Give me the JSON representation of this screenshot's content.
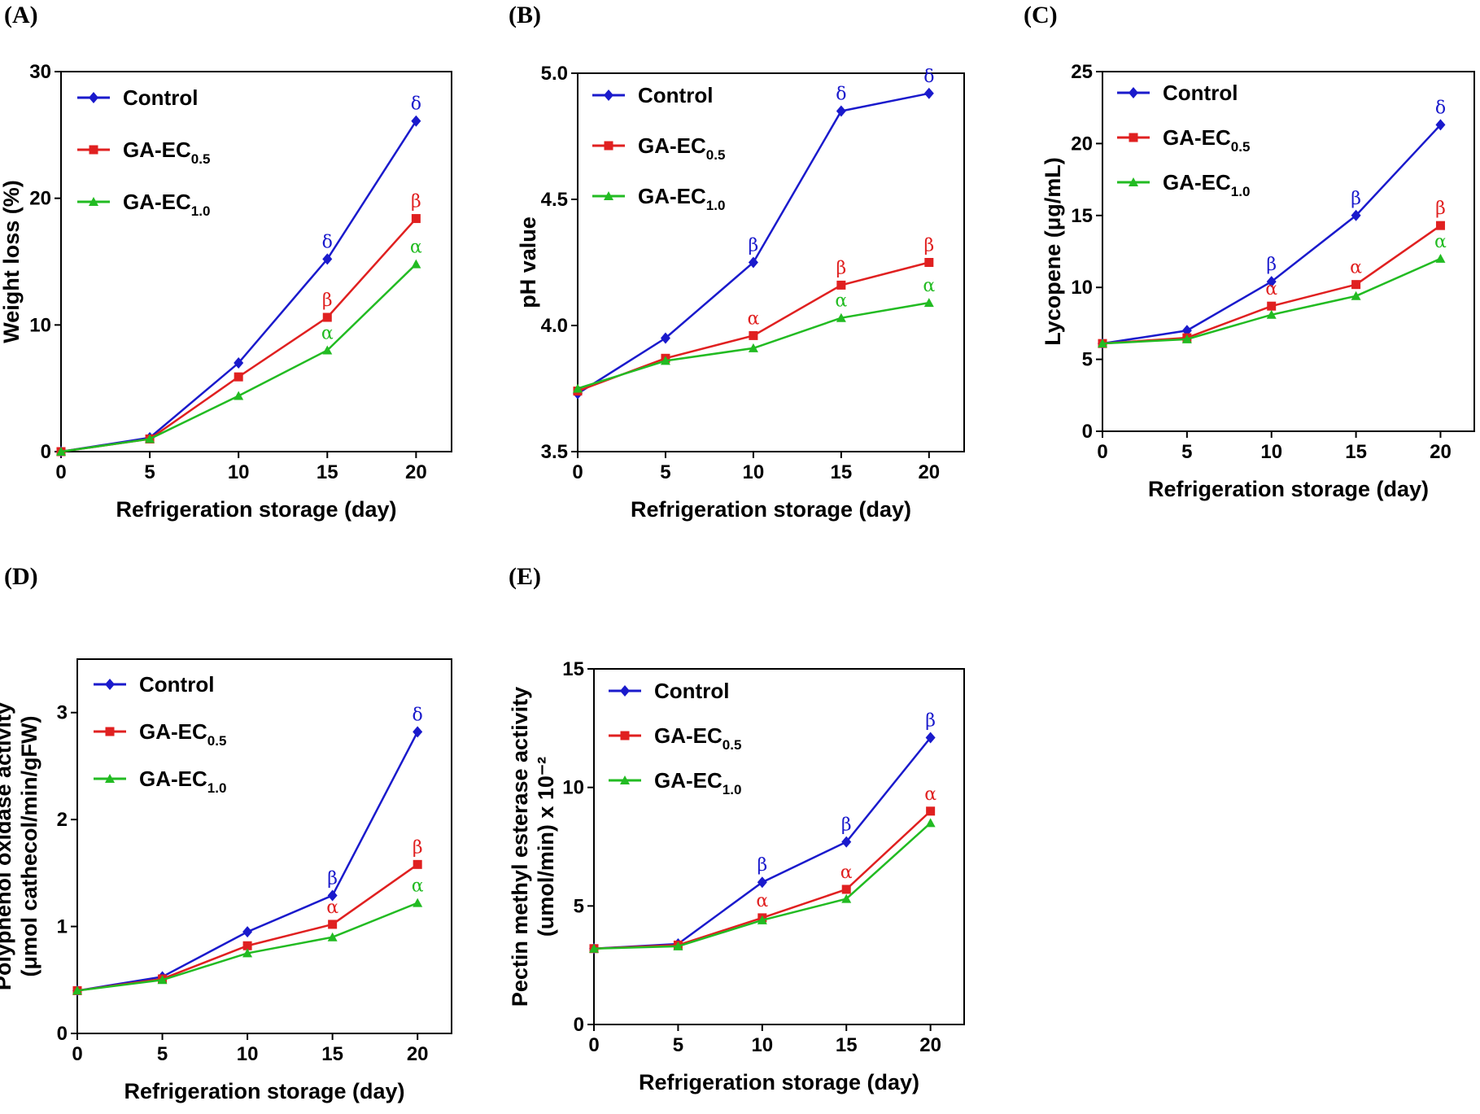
{
  "colors": {
    "Control": "#1a1acc",
    "GA-EC0.5": "#e02020",
    "GA-EC1.0": "#22bb22",
    "axis": "#000000"
  },
  "legend": [
    {
      "id": "Control",
      "main": "Control",
      "sub": ""
    },
    {
      "id": "GA-EC0.5",
      "main": "GA-EC",
      "sub": "0.5"
    },
    {
      "id": "GA-EC1.0",
      "main": "GA-EC",
      "sub": "1.0"
    }
  ],
  "chart_data": [
    {
      "id": "A",
      "panel_label": "(A)",
      "type": "line",
      "xlabel": "Refrigeration storage (day)",
      "ylabel": [
        "Weight loss (%)"
      ],
      "x": [
        0,
        5,
        10,
        15,
        20
      ],
      "xlim": [
        0,
        22
      ],
      "ylim": [
        0,
        30
      ],
      "yticks": [
        0,
        10,
        20,
        30
      ],
      "series": [
        {
          "name": "Control",
          "values": [
            0,
            1.1,
            7.0,
            15.2,
            26.1
          ],
          "labels": {
            "3": "δ",
            "4": "δ"
          }
        },
        {
          "name": "GA-EC0.5",
          "values": [
            0,
            1.0,
            5.9,
            10.6,
            18.4
          ],
          "labels": {
            "3": "β",
            "4": "β"
          }
        },
        {
          "name": "GA-EC1.0",
          "values": [
            0,
            1.0,
            4.4,
            8.0,
            14.8
          ],
          "labels": {
            "3": "α",
            "4": "α"
          }
        }
      ]
    },
    {
      "id": "B",
      "panel_label": "(B)",
      "type": "line",
      "xlabel": "Refrigeration storage (day)",
      "ylabel": [
        "pH value"
      ],
      "x": [
        0,
        5,
        10,
        15,
        20
      ],
      "xlim": [
        0,
        22
      ],
      "ylim": [
        3.5,
        5.0
      ],
      "yticks": [
        3.5,
        4.0,
        4.5,
        5.0
      ],
      "series": [
        {
          "name": "Control",
          "values": [
            3.73,
            3.95,
            4.25,
            4.85,
            4.92
          ],
          "labels": {
            "2": "β",
            "3": "δ",
            "4": "δ"
          }
        },
        {
          "name": "GA-EC0.5",
          "values": [
            3.74,
            3.87,
            3.96,
            4.16,
            4.25
          ],
          "labels": {
            "2": "α",
            "3": "β",
            "4": "β"
          }
        },
        {
          "name": "GA-EC1.0",
          "values": [
            3.75,
            3.86,
            3.91,
            4.03,
            4.09
          ],
          "labels": {
            "3": "α",
            "4": "α"
          }
        }
      ]
    },
    {
      "id": "C",
      "panel_label": "(C)",
      "type": "line",
      "xlabel": "Refrigeration storage (day)",
      "ylabel": [
        "Lycopene (μg/mL)"
      ],
      "x": [
        0,
        5,
        10,
        15,
        20
      ],
      "xlim": [
        0,
        22
      ],
      "ylim": [
        0,
        25
      ],
      "yticks": [
        0,
        5,
        10,
        15,
        20,
        25
      ],
      "series": [
        {
          "name": "Control",
          "values": [
            6.1,
            7.0,
            10.4,
            15.0,
            21.3
          ],
          "labels": {
            "2": "β",
            "3": "β",
            "4": "δ"
          }
        },
        {
          "name": "GA-EC0.5",
          "values": [
            6.1,
            6.5,
            8.7,
            10.2,
            14.3
          ],
          "labels": {
            "2": "α",
            "3": "α",
            "4": "β"
          }
        },
        {
          "name": "GA-EC1.0",
          "values": [
            6.1,
            6.4,
            8.1,
            9.4,
            12.0
          ],
          "labels": {
            "4": "α"
          }
        }
      ]
    },
    {
      "id": "D",
      "panel_label": "(D)",
      "type": "line",
      "xlabel": "Refrigeration storage (day)",
      "ylabel": [
        "Polyphenol oxidase activity",
        "(μmol cathecol/min/gFW)"
      ],
      "x": [
        0,
        5,
        10,
        15,
        20
      ],
      "xlim": [
        0,
        22
      ],
      "ylim": [
        0,
        3.5
      ],
      "yticks": [
        0,
        1,
        2,
        3
      ],
      "series": [
        {
          "name": "Control",
          "values": [
            0.4,
            0.53,
            0.95,
            1.29,
            2.82
          ],
          "labels": {
            "3": "β",
            "4": "δ"
          }
        },
        {
          "name": "GA-EC0.5",
          "values": [
            0.4,
            0.51,
            0.82,
            1.02,
            1.58
          ],
          "labels": {
            "3": "α",
            "4": "β"
          }
        },
        {
          "name": "GA-EC1.0",
          "values": [
            0.4,
            0.5,
            0.75,
            0.9,
            1.22
          ],
          "labels": {
            "4": "α"
          }
        }
      ]
    },
    {
      "id": "E",
      "panel_label": "(E)",
      "type": "line",
      "xlabel": "Refrigeration storage (day)",
      "ylabel": [
        "Pectin methyl esterase activity",
        "(umol/min) x 10⁻²"
      ],
      "x": [
        0,
        5,
        10,
        15,
        20
      ],
      "xlim": [
        0,
        22
      ],
      "ylim": [
        0,
        15
      ],
      "yticks": [
        0,
        5,
        10,
        15
      ],
      "series": [
        {
          "name": "Control",
          "values": [
            3.2,
            3.4,
            6.0,
            7.7,
            12.1
          ],
          "labels": {
            "2": "β",
            "3": "β",
            "4": "β"
          }
        },
        {
          "name": "GA-EC0.5",
          "values": [
            3.2,
            3.35,
            4.5,
            5.7,
            9.0
          ],
          "labels": {
            "2": "α",
            "3": "α",
            "4": "α"
          }
        },
        {
          "name": "GA-EC1.0",
          "values": [
            3.2,
            3.3,
            4.4,
            5.3,
            8.5
          ],
          "labels": {}
        }
      ]
    }
  ]
}
